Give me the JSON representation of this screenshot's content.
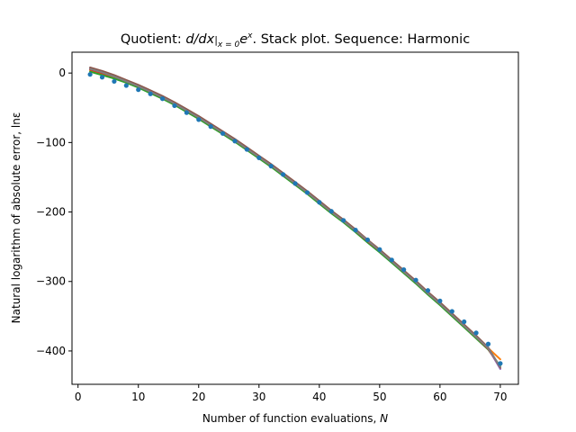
{
  "chart_data": {
    "type": "line",
    "title": {
      "prefix": "Quotient: ",
      "derivative": "d/dx",
      "subscript": "x = 0",
      "base": "e",
      "exponent": "x",
      "suffix": ". Stack plot. Sequence: Harmonic"
    },
    "xlabel": {
      "text": "Number of function evaluations, ",
      "symbol": "N"
    },
    "ylabel": "Natural logarithm of absolute error, lnε",
    "xlim": [
      -1,
      73
    ],
    "ylim": [
      -448,
      30
    ],
    "xticks": [
      0,
      10,
      20,
      30,
      40,
      50,
      60,
      70
    ],
    "yticks": [
      0,
      -100,
      -200,
      -300,
      -400
    ],
    "xtick_labels": [
      "0",
      "10",
      "20",
      "30",
      "40",
      "50",
      "60",
      "70"
    ],
    "ytick_labels": [
      "0",
      "−100",
      "−200",
      "−300",
      "−400"
    ],
    "grid": false,
    "legend": "none",
    "x": [
      2,
      4,
      6,
      8,
      10,
      12,
      14,
      16,
      18,
      20,
      22,
      24,
      26,
      28,
      30,
      32,
      34,
      36,
      38,
      40,
      42,
      44,
      46,
      48,
      50,
      52,
      54,
      56,
      58,
      60,
      62,
      64,
      66,
      68,
      70
    ],
    "series": [
      {
        "color": "#1f77b4",
        "style": "markers",
        "values": [
          -2,
          -6,
          -12,
          -18,
          -24,
          -30,
          -37,
          -47,
          -57,
          -67,
          -77,
          -87,
          -98,
          -110,
          -122,
          -134,
          -146,
          -159,
          -172,
          -186,
          -199,
          -212,
          -226,
          -240,
          -254,
          -269,
          -283,
          -298,
          -313,
          -328,
          -343,
          -358,
          -374,
          -390,
          -418
        ]
      },
      {
        "color": "#ff7f0e",
        "style": "line",
        "values": [
          4,
          -1,
          -6,
          -13,
          -20,
          -28,
          -36,
          -45,
          -55,
          -65,
          -76,
          -87,
          -98,
          -110,
          -122,
          -134,
          -147,
          -160,
          -173,
          -187,
          -201,
          -214,
          -228,
          -243,
          -257,
          -272,
          -287,
          -302,
          -317,
          -332,
          -348,
          -364,
          -380,
          -396,
          -412
        ]
      },
      {
        "color": "#2ca02c",
        "style": "line",
        "values": [
          2,
          -3,
          -8,
          -14,
          -21,
          -29,
          -37,
          -46,
          -56,
          -66,
          -77,
          -88,
          -99,
          -111,
          -123,
          -135,
          -148,
          -161,
          -174,
          -188,
          -202,
          -215,
          -229,
          -244,
          -258,
          -273,
          -288,
          -303,
          -319,
          -334,
          -350,
          -366,
          -382,
          -398,
          -422
        ]
      },
      {
        "color": "#d62728",
        "style": "line",
        "values": [
          5,
          0,
          -5,
          -12,
          -19,
          -27,
          -35,
          -44,
          -54,
          -64,
          -75,
          -86,
          -97,
          -109,
          -121,
          -133,
          -146,
          -159,
          -172,
          -186,
          -200,
          -213,
          -227,
          -242,
          -256,
          -271,
          -286,
          -301,
          -317,
          -332,
          -348,
          -364,
          -380,
          -397,
          -425
        ]
      },
      {
        "color": "#9467bd",
        "style": "line",
        "values": [
          7,
          2,
          -4,
          -11,
          -18,
          -26,
          -34,
          -43,
          -53,
          -63,
          -74,
          -85,
          -96,
          -108,
          -120,
          -132,
          -145,
          -158,
          -171,
          -185,
          -199,
          -212,
          -226,
          -241,
          -255,
          -270,
          -285,
          -300,
          -316,
          -331,
          -347,
          -363,
          -379,
          -396,
          -426
        ]
      },
      {
        "color": "#8c564b",
        "style": "line",
        "values": [
          8,
          3,
          -3,
          -10,
          -17,
          -25,
          -33,
          -42,
          -52,
          -62,
          -73,
          -84,
          -95,
          -107,
          -119,
          -131,
          -144,
          -157,
          -170,
          -184,
          -198,
          -211,
          -225,
          -240,
          -254,
          -269,
          -284,
          -299,
          -315,
          -330,
          -346,
          -362,
          -378,
          -395,
          -424
        ]
      },
      {
        "color": "#7f7f7f",
        "style": "line",
        "values": [
          6,
          1,
          -5,
          -12,
          -19,
          -27,
          -35,
          -44,
          -54,
          -64,
          -75,
          -86,
          -97,
          -109,
          -121,
          -133,
          -146,
          -159,
          -172,
          -186,
          -200,
          -213,
          -227,
          -241,
          -256,
          -271,
          -286,
          -301,
          -317,
          -332,
          -348,
          -364,
          -380,
          -396,
          -423
        ]
      }
    ]
  }
}
